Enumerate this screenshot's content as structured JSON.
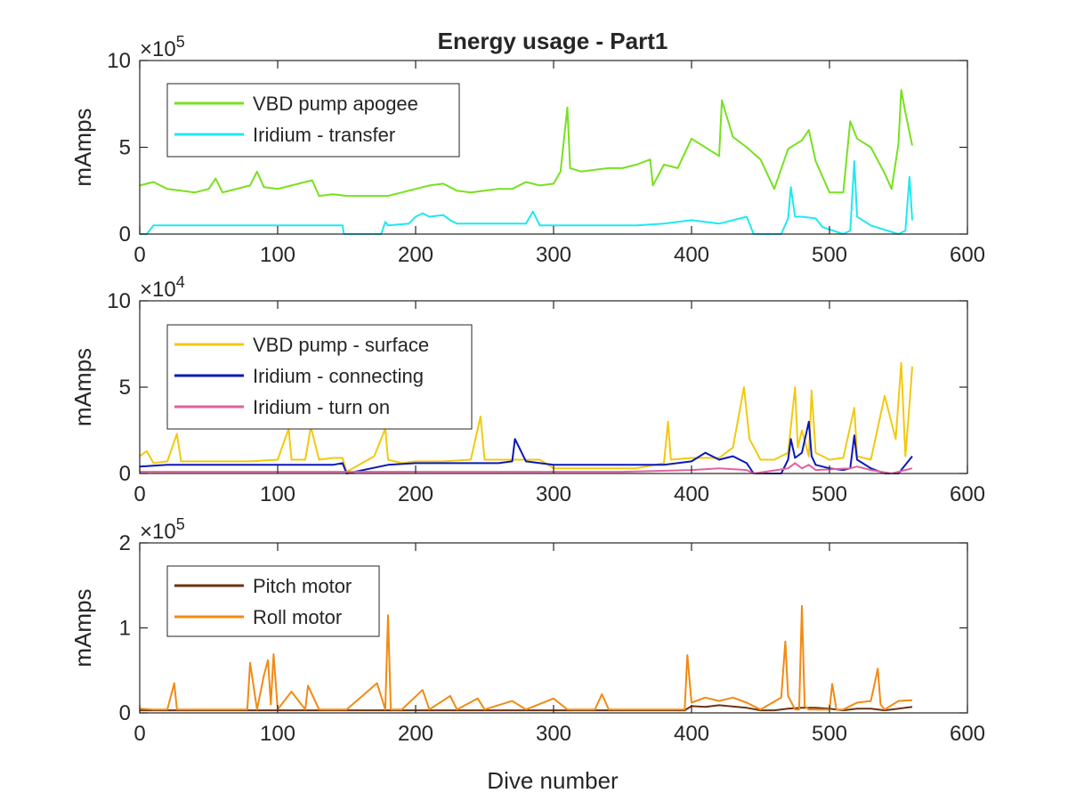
{
  "figure_title": "Energy usage - Part1",
  "xlabel": "Dive number",
  "chart_data": [
    {
      "type": "line",
      "title": "Energy usage - Part1",
      "xlabel": "",
      "ylabel": "mAmps",
      "xlim": [
        0,
        600
      ],
      "ylim": [
        0,
        10
      ],
      "y_exponent_label": "×10",
      "y_exponent": "5",
      "xticks": [
        "0",
        "100",
        "200",
        "300",
        "400",
        "500",
        "600"
      ],
      "yticks": [
        "0",
        "5",
        "10"
      ],
      "legend_position": "top-left",
      "series": [
        {
          "name": "VBD pump apogee",
          "color": "#77e11f",
          "x": [
            0,
            10,
            20,
            30,
            40,
            50,
            55,
            60,
            70,
            80,
            85,
            90,
            100,
            110,
            120,
            125,
            130,
            140,
            150,
            160,
            170,
            180,
            190,
            200,
            210,
            220,
            230,
            240,
            250,
            260,
            270,
            280,
            290,
            300,
            305,
            310,
            312,
            320,
            330,
            340,
            350,
            360,
            370,
            372,
            380,
            390,
            400,
            410,
            420,
            422,
            430,
            440,
            450,
            460,
            470,
            480,
            485,
            490,
            500,
            510,
            515,
            520,
            530,
            540,
            545,
            550,
            552,
            555,
            560
          ],
          "y": [
            2.8,
            3.0,
            2.6,
            2.5,
            2.4,
            2.6,
            3.2,
            2.4,
            2.6,
            2.8,
            3.6,
            2.7,
            2.6,
            2.8,
            3.0,
            3.1,
            2.2,
            2.3,
            2.2,
            2.2,
            2.2,
            2.2,
            2.4,
            2.6,
            2.8,
            2.9,
            2.5,
            2.4,
            2.5,
            2.6,
            2.6,
            3.0,
            2.8,
            2.9,
            3.6,
            7.3,
            3.8,
            3.6,
            3.7,
            3.8,
            3.8,
            4.0,
            4.3,
            2.8,
            4.0,
            3.8,
            5.5,
            5.0,
            4.5,
            7.7,
            5.6,
            5.0,
            4.3,
            2.6,
            4.9,
            5.4,
            6.0,
            4.2,
            2.4,
            2.4,
            6.5,
            5.5,
            5.0,
            3.5,
            2.6,
            5.2,
            8.3,
            7.0,
            5.1
          ]
        },
        {
          "name": "Iridium - transfer",
          "color": "#1fe8f0",
          "x": [
            0,
            5,
            10,
            15,
            20,
            40,
            60,
            80,
            100,
            120,
            140,
            147,
            148,
            175,
            178,
            180,
            195,
            200,
            205,
            210,
            220,
            225,
            230,
            250,
            270,
            280,
            285,
            290,
            300,
            320,
            340,
            360,
            380,
            400,
            420,
            440,
            445,
            465,
            470,
            472,
            475,
            480,
            490,
            495,
            510,
            515,
            518,
            520,
            530,
            550,
            555,
            558,
            560
          ],
          "y": [
            0.0,
            0.0,
            0.5,
            0.5,
            0.5,
            0.5,
            0.5,
            0.5,
            0.5,
            0.5,
            0.5,
            0.5,
            0.0,
            0.0,
            0.7,
            0.5,
            0.6,
            1.0,
            1.2,
            1.0,
            1.1,
            0.8,
            0.6,
            0.6,
            0.6,
            0.6,
            1.3,
            0.5,
            0.5,
            0.5,
            0.5,
            0.5,
            0.6,
            0.8,
            0.6,
            1.0,
            0.0,
            0.0,
            0.9,
            2.7,
            1.0,
            1.0,
            0.9,
            0.4,
            0.0,
            0.2,
            4.2,
            1.0,
            0.5,
            0.0,
            0.2,
            3.3,
            0.8
          ]
        }
      ]
    },
    {
      "type": "line",
      "title": "",
      "xlabel": "",
      "ylabel": "mAmps",
      "xlim": [
        0,
        600
      ],
      "ylim": [
        0,
        10
      ],
      "y_exponent_label": "×10",
      "y_exponent": "4",
      "xticks": [
        "0",
        "100",
        "200",
        "300",
        "400",
        "500",
        "600"
      ],
      "yticks": [
        "0",
        "5",
        "10"
      ],
      "legend_position": "top-left",
      "series": [
        {
          "name": "VBD pump - surface",
          "color": "#f2c90f",
          "x": [
            0,
            5,
            10,
            20,
            27,
            30,
            40,
            60,
            80,
            100,
            108,
            110,
            120,
            124,
            130,
            140,
            147,
            150,
            170,
            178,
            180,
            190,
            200,
            220,
            240,
            247,
            250,
            270,
            290,
            300,
            320,
            340,
            360,
            380,
            383,
            385,
            400,
            410,
            420,
            430,
            438,
            442,
            450,
            460,
            470,
            475,
            477,
            480,
            485,
            487,
            490,
            500,
            510,
            518,
            520,
            530,
            540,
            548,
            552,
            555,
            558,
            560
          ],
          "y": [
            1.0,
            1.3,
            0.6,
            0.7,
            2.3,
            0.7,
            0.7,
            0.7,
            0.7,
            0.8,
            2.6,
            0.8,
            0.8,
            2.7,
            0.8,
            0.9,
            0.9,
            0.1,
            1.0,
            2.6,
            0.8,
            0.6,
            0.7,
            0.7,
            0.8,
            3.3,
            0.8,
            0.8,
            0.8,
            0.3,
            0.3,
            0.3,
            0.3,
            0.6,
            3.0,
            0.8,
            0.9,
            0.9,
            0.9,
            1.5,
            5.0,
            2.0,
            0.8,
            0.8,
            1.2,
            5.0,
            1.5,
            2.5,
            1.0,
            4.8,
            1.2,
            0.8,
            0.9,
            3.8,
            1.0,
            0.8,
            4.5,
            2.0,
            6.4,
            1.0,
            4.0,
            6.2
          ]
        },
        {
          "name": "Iridium - connecting",
          "color": "#0a18b8",
          "x": [
            0,
            20,
            40,
            60,
            80,
            100,
            120,
            140,
            147,
            150,
            180,
            200,
            220,
            240,
            260,
            270,
            272,
            280,
            300,
            320,
            340,
            360,
            380,
            400,
            410,
            420,
            430,
            440,
            445,
            465,
            470,
            472,
            475,
            480,
            485,
            487,
            490,
            500,
            510,
            515,
            518,
            520,
            530,
            540,
            550,
            555,
            560
          ],
          "y": [
            0.4,
            0.5,
            0.5,
            0.5,
            0.5,
            0.5,
            0.5,
            0.5,
            0.6,
            0.0,
            0.5,
            0.6,
            0.6,
            0.6,
            0.6,
            0.7,
            2.0,
            0.7,
            0.5,
            0.5,
            0.5,
            0.5,
            0.5,
            0.7,
            1.2,
            0.8,
            1.0,
            0.6,
            0.0,
            0.0,
            0.8,
            2.0,
            0.9,
            1.2,
            3.0,
            1.0,
            0.5,
            0.3,
            0.2,
            0.3,
            2.2,
            0.8,
            0.3,
            0.0,
            0.0,
            0.5,
            1.0
          ]
        },
        {
          "name": "Iridium - turn on",
          "color": "#e3609f",
          "x": [
            0,
            50,
            100,
            150,
            200,
            250,
            300,
            350,
            400,
            420,
            440,
            445,
            470,
            475,
            480,
            485,
            490,
            515,
            520,
            530,
            545,
            550,
            555,
            560
          ],
          "y": [
            0.1,
            0.1,
            0.1,
            0.1,
            0.1,
            0.1,
            0.1,
            0.1,
            0.2,
            0.3,
            0.2,
            0.0,
            0.3,
            0.6,
            0.3,
            0.5,
            0.2,
            0.3,
            0.4,
            0.2,
            0.0,
            0.1,
            0.2,
            0.3
          ]
        }
      ]
    },
    {
      "type": "line",
      "title": "",
      "xlabel": "Dive number",
      "ylabel": "mAmps",
      "xlim": [
        0,
        600
      ],
      "ylim": [
        0,
        2
      ],
      "y_exponent_label": "×10",
      "y_exponent": "5",
      "xticks": [
        "0",
        "100",
        "200",
        "300",
        "400",
        "500",
        "600"
      ],
      "yticks": [
        "0",
        "1",
        "2"
      ],
      "legend_position": "top-left",
      "series": [
        {
          "name": "Pitch motor",
          "color": "#6b3313",
          "x": [
            0,
            50,
            100,
            150,
            178,
            200,
            250,
            300,
            350,
            395,
            400,
            410,
            420,
            440,
            450,
            460,
            470,
            480,
            490,
            500,
            510,
            520,
            530,
            540,
            550,
            560
          ],
          "y": [
            0.03,
            0.03,
            0.03,
            0.03,
            0.03,
            0.03,
            0.03,
            0.03,
            0.03,
            0.03,
            0.08,
            0.07,
            0.09,
            0.06,
            0.03,
            0.03,
            0.05,
            0.06,
            0.06,
            0.05,
            0.03,
            0.05,
            0.05,
            0.03,
            0.05,
            0.07
          ]
        },
        {
          "name": "Roll motor",
          "color": "#f28a12",
          "x": [
            0,
            10,
            20,
            25,
            27,
            30,
            40,
            60,
            78,
            80,
            85,
            90,
            93,
            95,
            97,
            100,
            110,
            120,
            122,
            130,
            150,
            172,
            178,
            180,
            182,
            190,
            205,
            210,
            225,
            230,
            245,
            250,
            270,
            280,
            300,
            310,
            330,
            335,
            340,
            360,
            380,
            395,
            397,
            400,
            410,
            420,
            430,
            440,
            450,
            465,
            468,
            470,
            475,
            478,
            480,
            482,
            485,
            490,
            500,
            502,
            505,
            510,
            520,
            530,
            535,
            537,
            540,
            550,
            560
          ],
          "y": [
            0.05,
            0.04,
            0.04,
            0.35,
            0.04,
            0.04,
            0.04,
            0.04,
            0.04,
            0.59,
            0.04,
            0.44,
            0.62,
            0.1,
            0.69,
            0.04,
            0.25,
            0.04,
            0.32,
            0.04,
            0.04,
            0.35,
            0.04,
            1.15,
            0.04,
            0.04,
            0.27,
            0.04,
            0.2,
            0.04,
            0.17,
            0.04,
            0.14,
            0.04,
            0.17,
            0.04,
            0.04,
            0.22,
            0.04,
            0.04,
            0.04,
            0.04,
            0.68,
            0.12,
            0.18,
            0.14,
            0.18,
            0.12,
            0.04,
            0.18,
            0.84,
            0.2,
            0.04,
            0.04,
            1.26,
            0.08,
            0.04,
            0.04,
            0.04,
            0.34,
            0.04,
            0.04,
            0.12,
            0.14,
            0.52,
            0.1,
            0.04,
            0.14,
            0.15
          ]
        }
      ]
    }
  ]
}
